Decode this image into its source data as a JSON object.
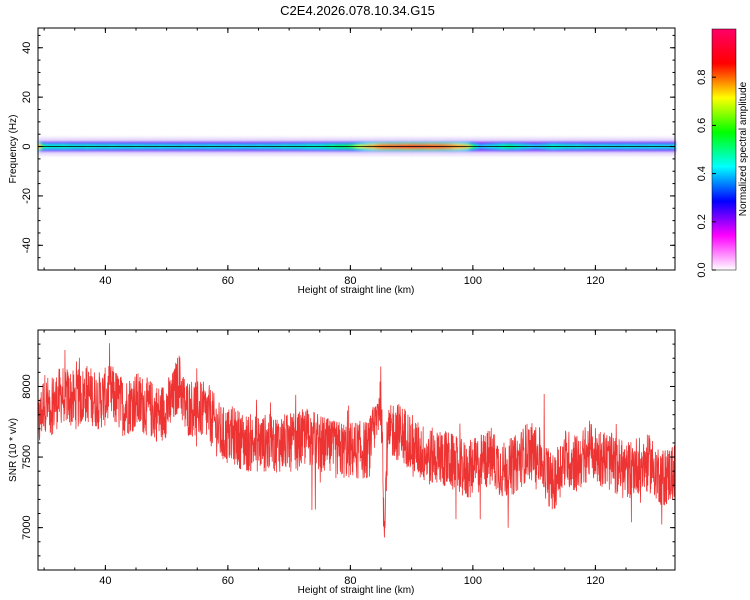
{
  "figure": {
    "title": "C2E4.2026.078.10.34.G15"
  },
  "chart_data": [
    {
      "type": "heatmap",
      "title": "C2E4.2026.078.10.34.G15",
      "xlabel": "Height of straight line (km)",
      "ylabel": "Frequency (Hz)",
      "xlim": [
        29,
        133
      ],
      "ylim": [
        -50,
        48
      ],
      "x_ticks": [
        "40",
        "60",
        "80",
        "100",
        "120"
      ],
      "y_ticks": [
        "40",
        "20",
        "0",
        "-20",
        "-40"
      ],
      "x_tick_values": [
        40,
        60,
        80,
        100,
        120
      ],
      "y_tick_values": [
        40,
        20,
        0,
        -20,
        -40
      ],
      "band_center_hz": 0,
      "band_halfwidth_hz": 2.5,
      "amplitude_profile": [
        {
          "x": 29,
          "a": 0.9
        },
        {
          "x": 30,
          "a": 0.5
        },
        {
          "x": 35,
          "a": 0.48
        },
        {
          "x": 45,
          "a": 0.46
        },
        {
          "x": 55,
          "a": 0.45
        },
        {
          "x": 65,
          "a": 0.45
        },
        {
          "x": 75,
          "a": 0.5
        },
        {
          "x": 80,
          "a": 0.6
        },
        {
          "x": 82,
          "a": 0.75
        },
        {
          "x": 85,
          "a": 0.9
        },
        {
          "x": 90,
          "a": 0.95
        },
        {
          "x": 95,
          "a": 0.92
        },
        {
          "x": 99,
          "a": 0.8
        },
        {
          "x": 101,
          "a": 0.4
        },
        {
          "x": 106,
          "a": 0.55
        },
        {
          "x": 110,
          "a": 0.42
        },
        {
          "x": 113,
          "a": 0.5
        },
        {
          "x": 120,
          "a": 0.45
        },
        {
          "x": 133,
          "a": 0.45
        }
      ],
      "colorbar": {
        "label": "Normalized spectral amplitude",
        "ticks": [
          "0.0",
          "0.2",
          "0.4",
          "0.6",
          "0.8"
        ],
        "tick_values": [
          0.0,
          0.2,
          0.4,
          0.6,
          0.8
        ],
        "range": [
          0,
          1
        ],
        "colors": [
          "#ffffff",
          "#ff00ff",
          "#0000ff",
          "#00ffff",
          "#00ff00",
          "#ffff00",
          "#ff0000",
          "#ff0066"
        ]
      }
    },
    {
      "type": "line",
      "title": "",
      "xlabel": "Height of straight line (km)",
      "ylabel": "SNR (10 * v/v)",
      "xlim": [
        29,
        133
      ],
      "ylim": [
        6700,
        8400
      ],
      "x_ticks": [
        "40",
        "60",
        "80",
        "100",
        "120"
      ],
      "y_ticks": [
        "8000",
        "7500",
        "7000"
      ],
      "x_tick_values": [
        40,
        60,
        80,
        100,
        120
      ],
      "y_tick_values": [
        8000,
        7500,
        7000
      ],
      "line_color": "#ee3333",
      "series": [
        {
          "name": "SNR",
          "x": [
            29,
            30,
            31,
            33,
            35,
            37,
            39,
            41,
            43,
            45,
            47,
            49,
            51,
            52,
            53,
            55,
            57,
            59,
            61,
            63,
            65,
            67,
            69,
            71,
            73,
            75,
            77,
            79,
            81,
            83,
            84,
            85,
            85.5,
            86,
            87,
            89,
            91,
            93,
            95,
            97,
            99,
            101,
            103,
            105,
            107,
            109,
            111,
            113,
            115,
            117,
            119,
            121,
            123,
            125,
            127,
            129,
            131,
            133
          ],
          "values": [
            7700,
            7900,
            7850,
            7950,
            7900,
            7950,
            7900,
            7950,
            7850,
            7900,
            7850,
            7800,
            7900,
            8050,
            7850,
            7850,
            7800,
            7650,
            7650,
            7600,
            7600,
            7600,
            7600,
            7600,
            7650,
            7600,
            7550,
            7550,
            7550,
            7550,
            7700,
            7950,
            7000,
            7600,
            7700,
            7650,
            7550,
            7500,
            7500,
            7450,
            7400,
            7450,
            7500,
            7400,
            7450,
            7550,
            7500,
            7300,
            7500,
            7450,
            7550,
            7500,
            7450,
            7400,
            7450,
            7450,
            7350,
            7400
          ]
        }
      ]
    }
  ]
}
